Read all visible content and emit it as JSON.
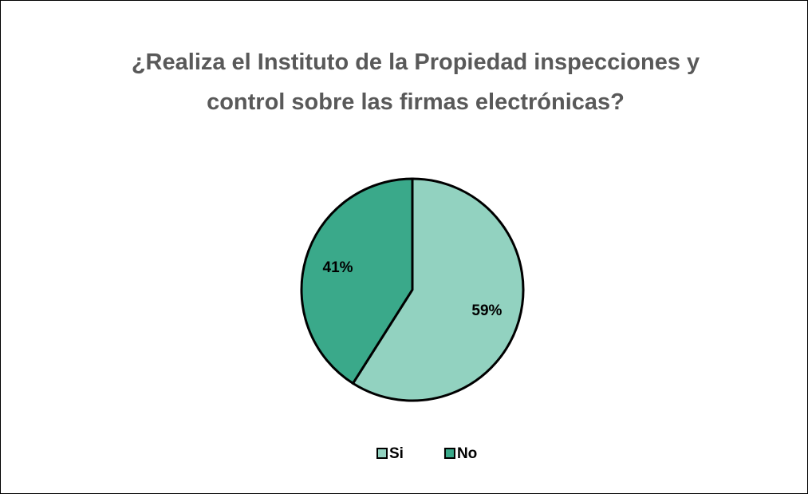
{
  "chart_data": {
    "type": "pie",
    "title": "¿Realiza el Instituto de la Propiedad inspecciones y control sobre las firmas electrónicas?",
    "categories": [
      "Si",
      "No"
    ],
    "values": [
      59,
      41
    ],
    "value_labels": [
      "59%",
      "41%"
    ],
    "colors": [
      "#92d2c0",
      "#3aa98a"
    ],
    "legend": "bottom"
  }
}
